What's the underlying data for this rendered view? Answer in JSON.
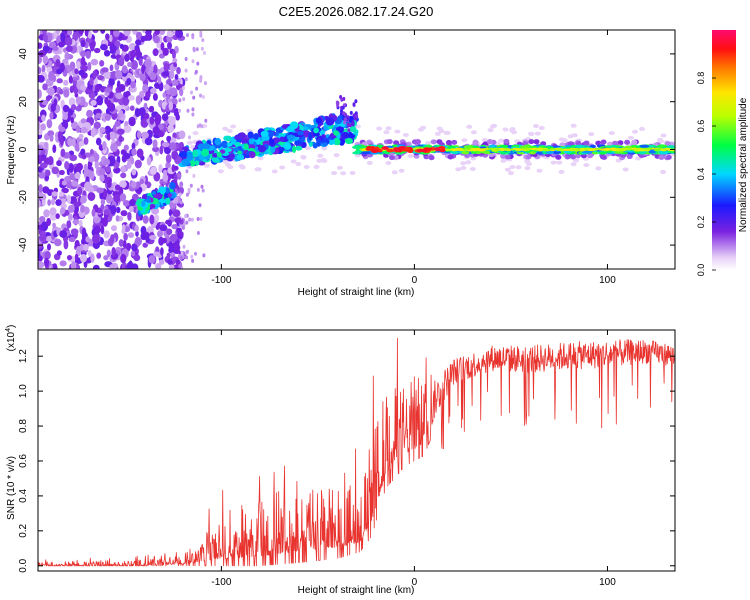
{
  "title": "C2E5.2026.082.17.24.G20",
  "chart_data": [
    {
      "type": "heatmap",
      "name": "spectrogram",
      "xlabel": "Height of straight line (km)",
      "ylabel": "Frequency (Hz)",
      "xlim": [
        -195,
        135
      ],
      "ylim": [
        -50,
        50
      ],
      "x_ticks": [
        -100,
        0,
        100
      ],
      "y_ticks": [
        -40,
        -20,
        0,
        20,
        40
      ],
      "colorbar": {
        "label": "Normalized spectral amplitude",
        "range": [
          0.0,
          1.0
        ],
        "ticks": [
          "0.0",
          "0.2",
          "0.4",
          "0.6",
          "0.8"
        ],
        "tick_values": [
          0.0,
          0.2,
          0.4,
          0.6,
          0.8
        ]
      },
      "features": [
        {
          "name": "noise",
          "x_range": [
            -195,
            -120
          ],
          "freq_range": [
            -50,
            50
          ],
          "amplitude": 0.15
        },
        {
          "name": "descending-segment",
          "x_range": [
            -143,
            -125
          ],
          "freq": [
            -24,
            -18
          ],
          "amplitude": 0.4
        },
        {
          "name": "rising-segment",
          "x_range": [
            -120,
            -30
          ],
          "freq": [
            -3,
            10
          ],
          "amplitude": 0.38
        },
        {
          "name": "carrier-line",
          "x_range": [
            -30,
            135
          ],
          "freq": [
            0,
            0
          ],
          "amplitude": 0.55
        },
        {
          "name": "carrier-peak",
          "x_range": [
            -25,
            15
          ],
          "freq": [
            0,
            0
          ],
          "amplitude": 0.9
        }
      ]
    },
    {
      "type": "line",
      "name": "snr",
      "xlabel": "Height of straight line (km)",
      "ylabel": "SNR (10 * v/v)",
      "scale_label": "(x10",
      "scale_exponent": "4",
      "xlim": [
        -195,
        135
      ],
      "ylim": [
        -0.03,
        1.35
      ],
      "x_ticks": [
        -100,
        0,
        100
      ],
      "y_ticks": [
        "0.0",
        "0.2",
        "0.4",
        "0.6",
        "0.8",
        "1.0",
        "1.2"
      ],
      "y_tick_values": [
        0.0,
        0.2,
        0.4,
        0.6,
        0.8,
        1.0,
        1.2
      ],
      "color": "#e8332e",
      "profile": {
        "x": [
          -195,
          -150,
          -120,
          -105,
          -95,
          -80,
          -60,
          -40,
          -28,
          -22,
          -15,
          -5,
          5,
          10,
          20,
          40,
          60,
          80,
          100,
          120,
          135
        ],
        "base": [
          0.0,
          0.0,
          0.02,
          0.07,
          0.1,
          0.12,
          0.15,
          0.18,
          0.2,
          0.35,
          0.62,
          0.72,
          0.78,
          0.9,
          1.08,
          1.16,
          1.15,
          1.17,
          1.18,
          1.2,
          1.18
        ],
        "amp": [
          0.02,
          0.02,
          0.03,
          0.12,
          0.18,
          0.2,
          0.22,
          0.23,
          0.2,
          0.3,
          0.3,
          0.25,
          0.25,
          0.22,
          0.15,
          0.15,
          0.16,
          0.16,
          0.16,
          0.14,
          0.12
        ]
      }
    }
  ]
}
